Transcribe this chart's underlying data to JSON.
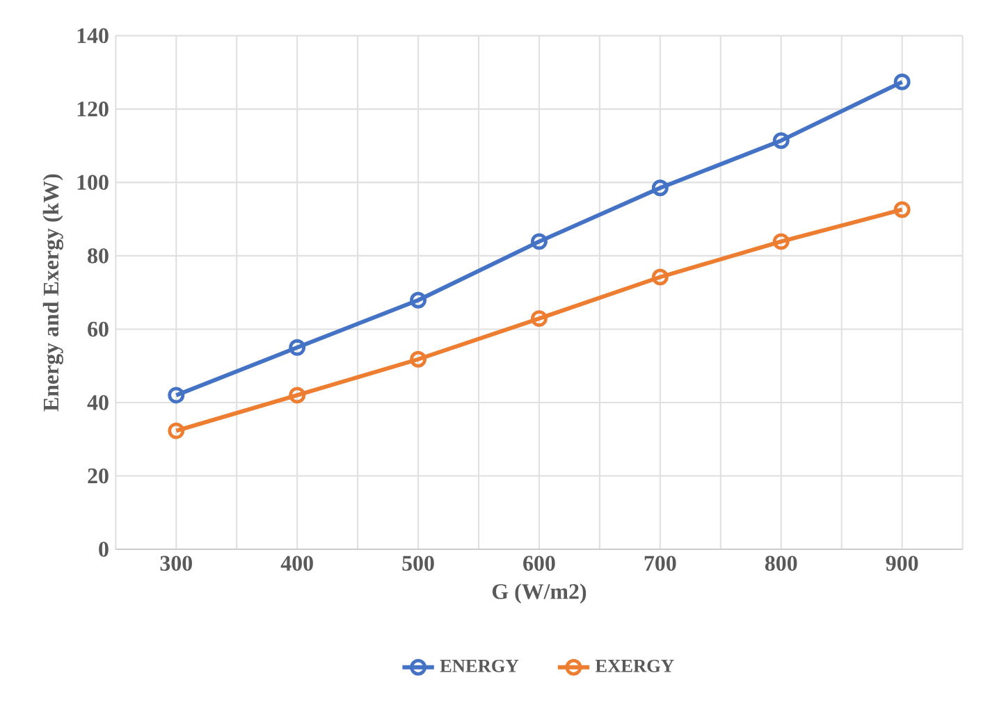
{
  "chart_data": {
    "type": "line",
    "xlabel": "G (W/m2)",
    "ylabel": "Energy and Exergy (kW)",
    "categories": [
      "300",
      "400",
      "500",
      "600",
      "700",
      "800",
      "900"
    ],
    "series": [
      {
        "name": "ENERGY",
        "color": "#4472c4",
        "values": [
          42.0,
          55.0,
          67.9,
          83.9,
          98.5,
          111.4,
          127.4
        ]
      },
      {
        "name": "EXERGY",
        "color": "#ed7d31",
        "values": [
          32.3,
          42.0,
          51.8,
          62.9,
          74.2,
          83.9,
          92.6
        ]
      }
    ],
    "ylim": [
      0,
      140
    ],
    "yticks": [
      0,
      20,
      40,
      60,
      80,
      100,
      120,
      140
    ],
    "grid": true,
    "legend": "bottom",
    "marker": "circle",
    "line_style": "solid"
  }
}
